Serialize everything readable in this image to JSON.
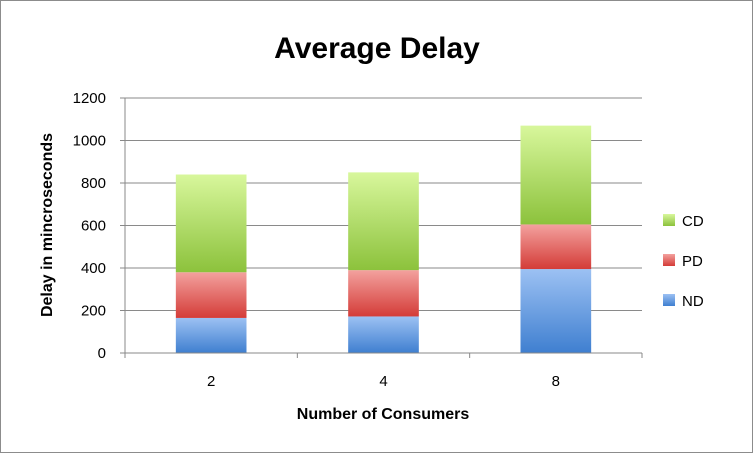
{
  "chart_data": {
    "type": "bar",
    "stacked": true,
    "title": "Average Delay",
    "xlabel": "Number of Consumers",
    "ylabel": "Delay in mincroseconds",
    "categories": [
      "2",
      "4",
      "8"
    ],
    "ylim": [
      0,
      1200
    ],
    "yticks": [
      0,
      200,
      400,
      600,
      800,
      1000,
      1200
    ],
    "grid": true,
    "legend_position": "right",
    "series": [
      {
        "name": "ND",
        "values": [
          165,
          172,
          395
        ],
        "color": "#4f81bd"
      },
      {
        "name": "PD",
        "values": [
          215,
          218,
          210
        ],
        "color": "#c0504d"
      },
      {
        "name": "CD",
        "values": [
          460,
          460,
          465
        ],
        "color": "#9bbb59"
      }
    ],
    "legend_order": [
      "CD",
      "PD",
      "ND"
    ]
  }
}
